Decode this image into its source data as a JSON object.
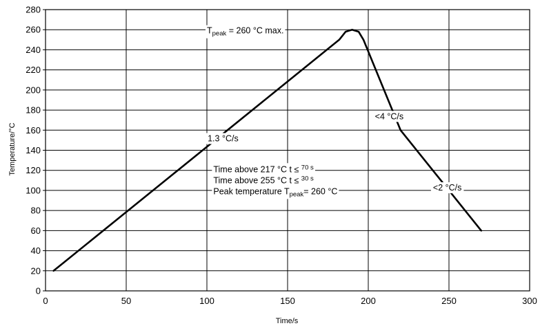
{
  "chart_data": {
    "type": "line",
    "xlabel": "Time/s",
    "ylabel": "Temperature/°C",
    "xlim": [
      0,
      300
    ],
    "ylim": [
      0,
      280
    ],
    "x_ticks": [
      "0",
      "50",
      "100",
      "150",
      "200",
      "250",
      "300"
    ],
    "y_ticks": [
      "0",
      "20",
      "40",
      "60",
      "80",
      "100",
      "120",
      "140",
      "160",
      "180",
      "200",
      "220",
      "240",
      "260",
      "280"
    ],
    "grid": true,
    "legend": "none",
    "series": [
      {
        "x": [
          5,
          182,
          186,
          190,
          194,
          197,
          220,
          270
        ],
        "y": [
          20,
          250,
          258,
          260,
          258,
          250,
          160,
          60
        ]
      }
    ],
    "annotations": [
      {
        "text": "1.3 °C/s",
        "x": 110,
        "y": 152
      },
      {
        "text": "<4 °C/s",
        "x": 213,
        "y": 174
      },
      {
        "text": "<2 °C/s",
        "x": 249,
        "y": 103
      }
    ],
    "peak_label": {
      "main": "T",
      "sub": "peak",
      "rest": " = 260 °C max."
    },
    "notes": [
      {
        "main": "Time above 217 °C  t ≤ ",
        "sup": "70 s"
      },
      {
        "main": "Time above 255 °C  t ≤ ",
        "sup": "30 s"
      },
      {
        "main": "Peak temperature T",
        "sub": "peak",
        "rest": "= 260 °C"
      }
    ]
  }
}
